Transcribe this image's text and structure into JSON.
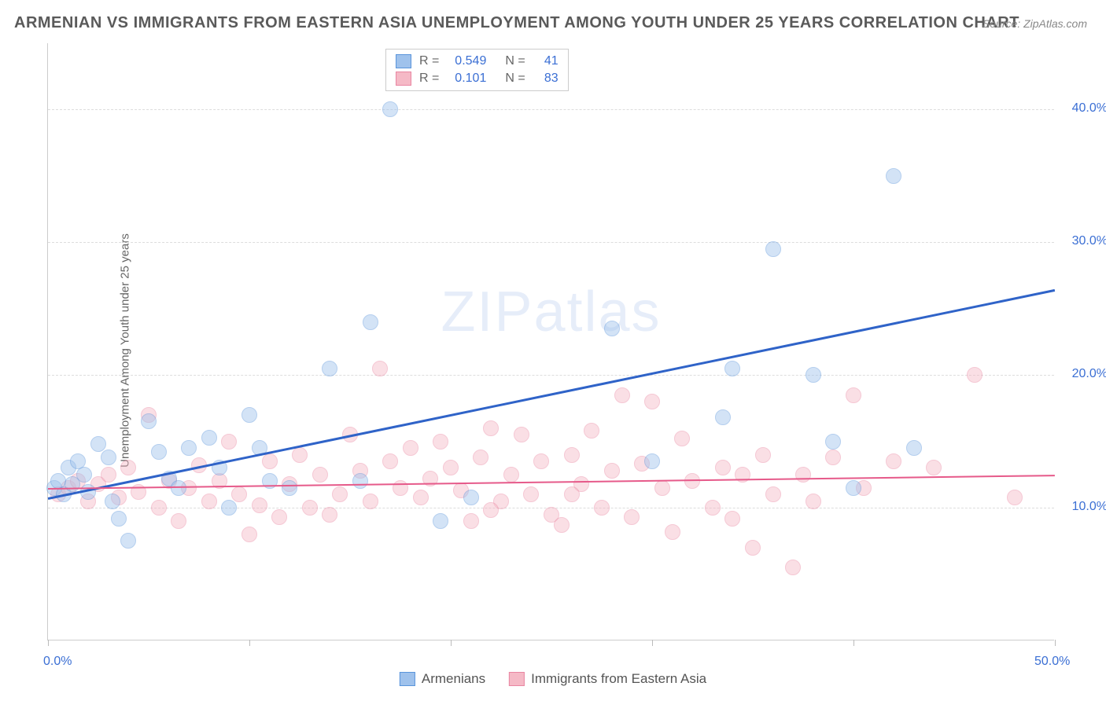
{
  "title": "ARMENIAN VS IMMIGRANTS FROM EASTERN ASIA UNEMPLOYMENT AMONG YOUTH UNDER 25 YEARS CORRELATION CHART",
  "source": "Source: ZipAtlas.com",
  "ylabel": "Unemployment Among Youth under 25 years",
  "watermark": "ZIPatlas",
  "chart": {
    "type": "scatter",
    "xlim": [
      0,
      50
    ],
    "ylim": [
      0,
      45
    ],
    "x_ticks": [
      0,
      10,
      20,
      30,
      40,
      50
    ],
    "y_grid": [
      10,
      20,
      30,
      40
    ],
    "x_tick_format": [
      "0.0%",
      "",
      "",
      "",
      "",
      "50.0%"
    ],
    "y_tick_labels": [
      "10.0%",
      "20.0%",
      "30.0%",
      "40.0%"
    ],
    "background_color": "#ffffff",
    "grid_color": "#dddddd",
    "axis_color": "#cccccc",
    "tick_label_color": "#3b6fd4",
    "point_radius": 10,
    "point_opacity": 0.45,
    "series": {
      "armenians": {
        "label": "Armenians",
        "fill": "#9fc2ec",
        "stroke": "#5a95db",
        "R": "0.549",
        "N": "41",
        "trend": {
          "x0": 0,
          "y0": 10.8,
          "x1": 50,
          "y1": 26.5,
          "width": 2.5,
          "color": "#2f63c8"
        },
        "points": [
          [
            0.3,
            11.5
          ],
          [
            0.5,
            12.0
          ],
          [
            0.8,
            11.0
          ],
          [
            1.0,
            13.0
          ],
          [
            1.2,
            11.8
          ],
          [
            1.5,
            13.5
          ],
          [
            1.8,
            12.5
          ],
          [
            2.0,
            11.2
          ],
          [
            2.5,
            14.8
          ],
          [
            3.0,
            13.8
          ],
          [
            3.2,
            10.5
          ],
          [
            3.5,
            9.2
          ],
          [
            4.0,
            7.5
          ],
          [
            5.0,
            16.5
          ],
          [
            5.5,
            14.2
          ],
          [
            6.0,
            12.2
          ],
          [
            6.5,
            11.5
          ],
          [
            7.0,
            14.5
          ],
          [
            8.0,
            15.3
          ],
          [
            8.5,
            13.0
          ],
          [
            9.0,
            10.0
          ],
          [
            10.0,
            17.0
          ],
          [
            10.5,
            14.5
          ],
          [
            11.0,
            12.0
          ],
          [
            12.0,
            11.5
          ],
          [
            14.0,
            20.5
          ],
          [
            15.5,
            12.0
          ],
          [
            16.0,
            24.0
          ],
          [
            17.0,
            40.0
          ],
          [
            19.5,
            9.0
          ],
          [
            21.0,
            10.8
          ],
          [
            28.0,
            23.5
          ],
          [
            30.0,
            13.5
          ],
          [
            33.5,
            16.8
          ],
          [
            34.0,
            20.5
          ],
          [
            36.0,
            29.5
          ],
          [
            38.0,
            20.0
          ],
          [
            39.0,
            15.0
          ],
          [
            40.0,
            11.5
          ],
          [
            42.0,
            35.0
          ],
          [
            43.0,
            14.5
          ]
        ]
      },
      "eastern_asia": {
        "label": "Immigrants from Eastern Asia",
        "fill": "#f5b9c6",
        "stroke": "#e986a2",
        "R": "0.101",
        "N": "83",
        "trend": {
          "x0": 0,
          "y0": 11.5,
          "x1": 50,
          "y1": 12.5,
          "width": 2,
          "color": "#e65a8a"
        },
        "points": [
          [
            0.5,
            11.0
          ],
          [
            1.0,
            11.5
          ],
          [
            1.5,
            12.0
          ],
          [
            2.0,
            10.5
          ],
          [
            2.5,
            11.8
          ],
          [
            3.0,
            12.5
          ],
          [
            3.5,
            10.8
          ],
          [
            4.0,
            13.0
          ],
          [
            4.5,
            11.2
          ],
          [
            5.0,
            17.0
          ],
          [
            5.5,
            10.0
          ],
          [
            6.0,
            12.0
          ],
          [
            6.5,
            9.0
          ],
          [
            7.0,
            11.5
          ],
          [
            7.5,
            13.2
          ],
          [
            8.0,
            10.5
          ],
          [
            8.5,
            12.0
          ],
          [
            9.0,
            15.0
          ],
          [
            9.5,
            11.0
          ],
          [
            10.0,
            8.0
          ],
          [
            10.5,
            10.2
          ],
          [
            11.0,
            13.5
          ],
          [
            11.5,
            9.3
          ],
          [
            12.0,
            11.8
          ],
          [
            12.5,
            14.0
          ],
          [
            13.0,
            10.0
          ],
          [
            13.5,
            12.5
          ],
          [
            14.0,
            9.5
          ],
          [
            14.5,
            11.0
          ],
          [
            15.0,
            15.5
          ],
          [
            15.5,
            12.8
          ],
          [
            16.0,
            10.5
          ],
          [
            16.5,
            20.5
          ],
          [
            17.0,
            13.5
          ],
          [
            17.5,
            11.5
          ],
          [
            18.0,
            14.5
          ],
          [
            18.5,
            10.8
          ],
          [
            19.0,
            12.2
          ],
          [
            19.5,
            15.0
          ],
          [
            20.0,
            13.0
          ],
          [
            20.5,
            11.3
          ],
          [
            21.0,
            9.0
          ],
          [
            21.5,
            13.8
          ],
          [
            22.0,
            16.0
          ],
          [
            22.5,
            10.5
          ],
          [
            23.0,
            12.5
          ],
          [
            23.5,
            15.5
          ],
          [
            24.0,
            11.0
          ],
          [
            24.5,
            13.5
          ],
          [
            25.0,
            9.5
          ],
          [
            25.5,
            8.7
          ],
          [
            26.0,
            14.0
          ],
          [
            26.5,
            11.8
          ],
          [
            27.0,
            15.8
          ],
          [
            27.5,
            10.0
          ],
          [
            28.0,
            12.8
          ],
          [
            28.5,
            18.5
          ],
          [
            29.0,
            9.3
          ],
          [
            29.5,
            13.3
          ],
          [
            30.0,
            18.0
          ],
          [
            30.5,
            11.5
          ],
          [
            31.0,
            8.2
          ],
          [
            31.5,
            15.2
          ],
          [
            32.0,
            12.0
          ],
          [
            33.0,
            10.0
          ],
          [
            34.0,
            9.2
          ],
          [
            34.5,
            12.5
          ],
          [
            35.0,
            7.0
          ],
          [
            35.5,
            14.0
          ],
          [
            36.0,
            11.0
          ],
          [
            37.0,
            5.5
          ],
          [
            37.5,
            12.5
          ],
          [
            38.0,
            10.5
          ],
          [
            39.0,
            13.8
          ],
          [
            40.0,
            18.5
          ],
          [
            40.5,
            11.5
          ],
          [
            42.0,
            13.5
          ],
          [
            44.0,
            13.0
          ],
          [
            46.0,
            20.0
          ],
          [
            48.0,
            10.8
          ],
          [
            33.5,
            13.0
          ],
          [
            22.0,
            9.8
          ],
          [
            26.0,
            11.0
          ]
        ]
      }
    }
  },
  "legend_top": {
    "rows": [
      {
        "series": "armenians",
        "R_label": "R =",
        "N_label": "N ="
      },
      {
        "series": "eastern_asia",
        "R_label": "R =",
        "N_label": "N ="
      }
    ]
  }
}
